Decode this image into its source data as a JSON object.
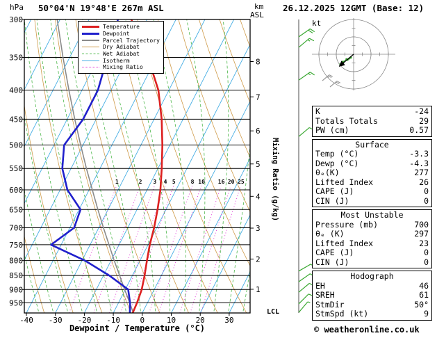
{
  "header": {
    "pressure_unit": "hPa",
    "station": "50°04'N 19°48'E 267m ASL",
    "altitude_unit_km": "km",
    "altitude_unit_asl": "ASL",
    "datetime": "26.12.2025 12GMT (Base: 12)"
  },
  "legend": {
    "items": [
      {
        "label": "Temperature",
        "color": "#dd2020",
        "width": 3,
        "dash": "solid"
      },
      {
        "label": "Dewpoint",
        "color": "#2020cc",
        "width": 3,
        "dash": "solid"
      },
      {
        "label": "Parcel Trajectory",
        "color": "#8a8a8a",
        "width": 2,
        "dash": "solid"
      },
      {
        "label": "Dry Adiabat",
        "color": "#cf9b4a",
        "width": 1,
        "dash": "solid"
      },
      {
        "label": "Wet Adiabat",
        "color": "#4bb749",
        "width": 1,
        "dash": "dashed"
      },
      {
        "label": "Isotherm",
        "color": "#46aee4",
        "width": 1,
        "dash": "solid"
      },
      {
        "label": "Mixing Ratio",
        "color": "#e23bd7",
        "width": 1,
        "dash": "dotted"
      }
    ]
  },
  "chart_data": {
    "type": "skewt_log_p",
    "title": "50°04'N 19°48'E 267m ASL",
    "datetime": "26.12.2025 12GMT (Base: 12)",
    "x_axis": {
      "label": "Dewpoint / Temperature (°C)",
      "ticks": [
        -40,
        -30,
        -20,
        -10,
        0,
        10,
        20,
        30
      ],
      "unit": "°C"
    },
    "pressure_axis": {
      "unit": "hPa",
      "levels": [
        300,
        350,
        400,
        450,
        500,
        550,
        600,
        650,
        700,
        750,
        800,
        850,
        900,
        950
      ],
      "top": 300,
      "bottom": 990
    },
    "km_axis": {
      "unit": "km ASL",
      "marks": [
        {
          "km": 1,
          "p": 899
        },
        {
          "km": 2,
          "p": 795
        },
        {
          "km": 3,
          "p": 701
        },
        {
          "km": 4,
          "p": 616
        },
        {
          "km": 5,
          "p": 540
        },
        {
          "km": 6,
          "p": 472
        },
        {
          "km": 7,
          "p": 411
        },
        {
          "km": 8,
          "p": 356
        }
      ]
    },
    "mixing_ratio": {
      "axis_label": "Mixing Ratio (g/kg)",
      "values": [
        1,
        2,
        3,
        4,
        5,
        8,
        10,
        16,
        20,
        25
      ]
    },
    "lcl": {
      "label": "LCL",
      "p": 985
    },
    "series": {
      "temperature": {
        "name": "Temperature",
        "color": "#dd2020",
        "points": [
          [
            990,
            -3.3
          ],
          [
            950,
            -3.6
          ],
          [
            900,
            -4.3
          ],
          [
            850,
            -5.8
          ],
          [
            800,
            -7.6
          ],
          [
            750,
            -9.4
          ],
          [
            700,
            -10.9
          ],
          [
            650,
            -12.9
          ],
          [
            600,
            -15.4
          ],
          [
            550,
            -18.7
          ],
          [
            500,
            -22.6
          ],
          [
            450,
            -27.4
          ],
          [
            400,
            -33.6
          ],
          [
            350,
            -43.0
          ],
          [
            300,
            -55.4
          ]
        ]
      },
      "dewpoint": {
        "name": "Dewpoint",
        "color": "#2020cc",
        "points": [
          [
            990,
            -4.3
          ],
          [
            950,
            -6.0
          ],
          [
            900,
            -9.0
          ],
          [
            850,
            -18.0
          ],
          [
            800,
            -29.0
          ],
          [
            750,
            -43.5
          ],
          [
            700,
            -38.5
          ],
          [
            650,
            -39.5
          ],
          [
            600,
            -47.5
          ],
          [
            550,
            -53.0
          ],
          [
            500,
            -56.5
          ],
          [
            450,
            -54.5
          ],
          [
            400,
            -54.5
          ],
          [
            350,
            -57.0
          ],
          [
            300,
            -60.0
          ]
        ]
      },
      "parcel": {
        "name": "Parcel Trajectory",
        "color": "#8a8a8a",
        "points": [
          [
            990,
            -3.1
          ],
          [
            950,
            -6.1
          ],
          [
            900,
            -10.2
          ],
          [
            850,
            -14.4
          ],
          [
            800,
            -18.9
          ],
          [
            750,
            -23.5
          ],
          [
            700,
            -28.4
          ],
          [
            650,
            -33.5
          ],
          [
            600,
            -38.9
          ],
          [
            550,
            -44.7
          ],
          [
            500,
            -50.8
          ],
          [
            450,
            -57.4
          ],
          [
            400,
            -64.5
          ],
          [
            350,
            -72.3
          ],
          [
            300,
            -81.0
          ]
        ]
      }
    },
    "wind_barbs": {
      "color": "#3aa832",
      "barbs": [
        {
          "p": 322,
          "dir": 55,
          "spd": 20
        },
        {
          "p": 336,
          "dir": 50,
          "spd": 15
        },
        {
          "p": 384,
          "dir": 55,
          "spd": 15
        },
        {
          "p": 483,
          "dir": 50,
          "spd": 10
        },
        {
          "p": 835,
          "dir": 60,
          "spd": 10
        },
        {
          "p": 872,
          "dir": 55,
          "spd": 10
        },
        {
          "p": 910,
          "dir": 50,
          "spd": 10
        },
        {
          "p": 954,
          "dir": 45,
          "spd": 10
        },
        {
          "p": 988,
          "dir": 40,
          "spd": 5
        }
      ]
    },
    "style": {
      "isotherm": "#46aee4",
      "dry_adiabat": "#cf9b4a",
      "wet_adiabat": "#4bb749",
      "mixing_ratio": "#e23bd7",
      "pressure_line": "#000000",
      "border": "#000000",
      "barb_axis": "#000000",
      "hodograph_grid": "#888888"
    }
  },
  "hodograph": {
    "unit_label": "kt",
    "storm_dir_deg": 50,
    "storm_spd_kt": 9,
    "ring_radii_kt": [
      20,
      40
    ]
  },
  "stats": {
    "boxes": [
      {
        "header": null,
        "rows": [
          [
            "K",
            "-24"
          ],
          [
            "Totals Totals",
            "29"
          ],
          [
            "PW (cm)",
            "0.57"
          ]
        ]
      },
      {
        "header": "Surface",
        "rows": [
          [
            "Temp (°C)",
            "-3.3"
          ],
          [
            "Dewp (°C)",
            "-4.3"
          ],
          [
            "θₑ(K)",
            "277"
          ],
          [
            "Lifted Index",
            "26"
          ],
          [
            "CAPE (J)",
            "0"
          ],
          [
            "CIN (J)",
            "0"
          ]
        ]
      },
      {
        "header": "Most Unstable",
        "rows": [
          [
            "Pressure (mb)",
            "700"
          ],
          [
            "θₑ (K)",
            "297"
          ],
          [
            "Lifted Index",
            "23"
          ],
          [
            "CAPE (J)",
            "0"
          ],
          [
            "CIN (J)",
            "0"
          ]
        ]
      },
      {
        "header": "Hodograph",
        "rows": [
          [
            "EH",
            "46"
          ],
          [
            "SREH",
            "61"
          ],
          [
            "StmDir",
            "50°"
          ],
          [
            "StmSpd (kt)",
            "9"
          ]
        ]
      }
    ]
  },
  "footer": {
    "copyright": "© weatheronline.co.uk"
  }
}
